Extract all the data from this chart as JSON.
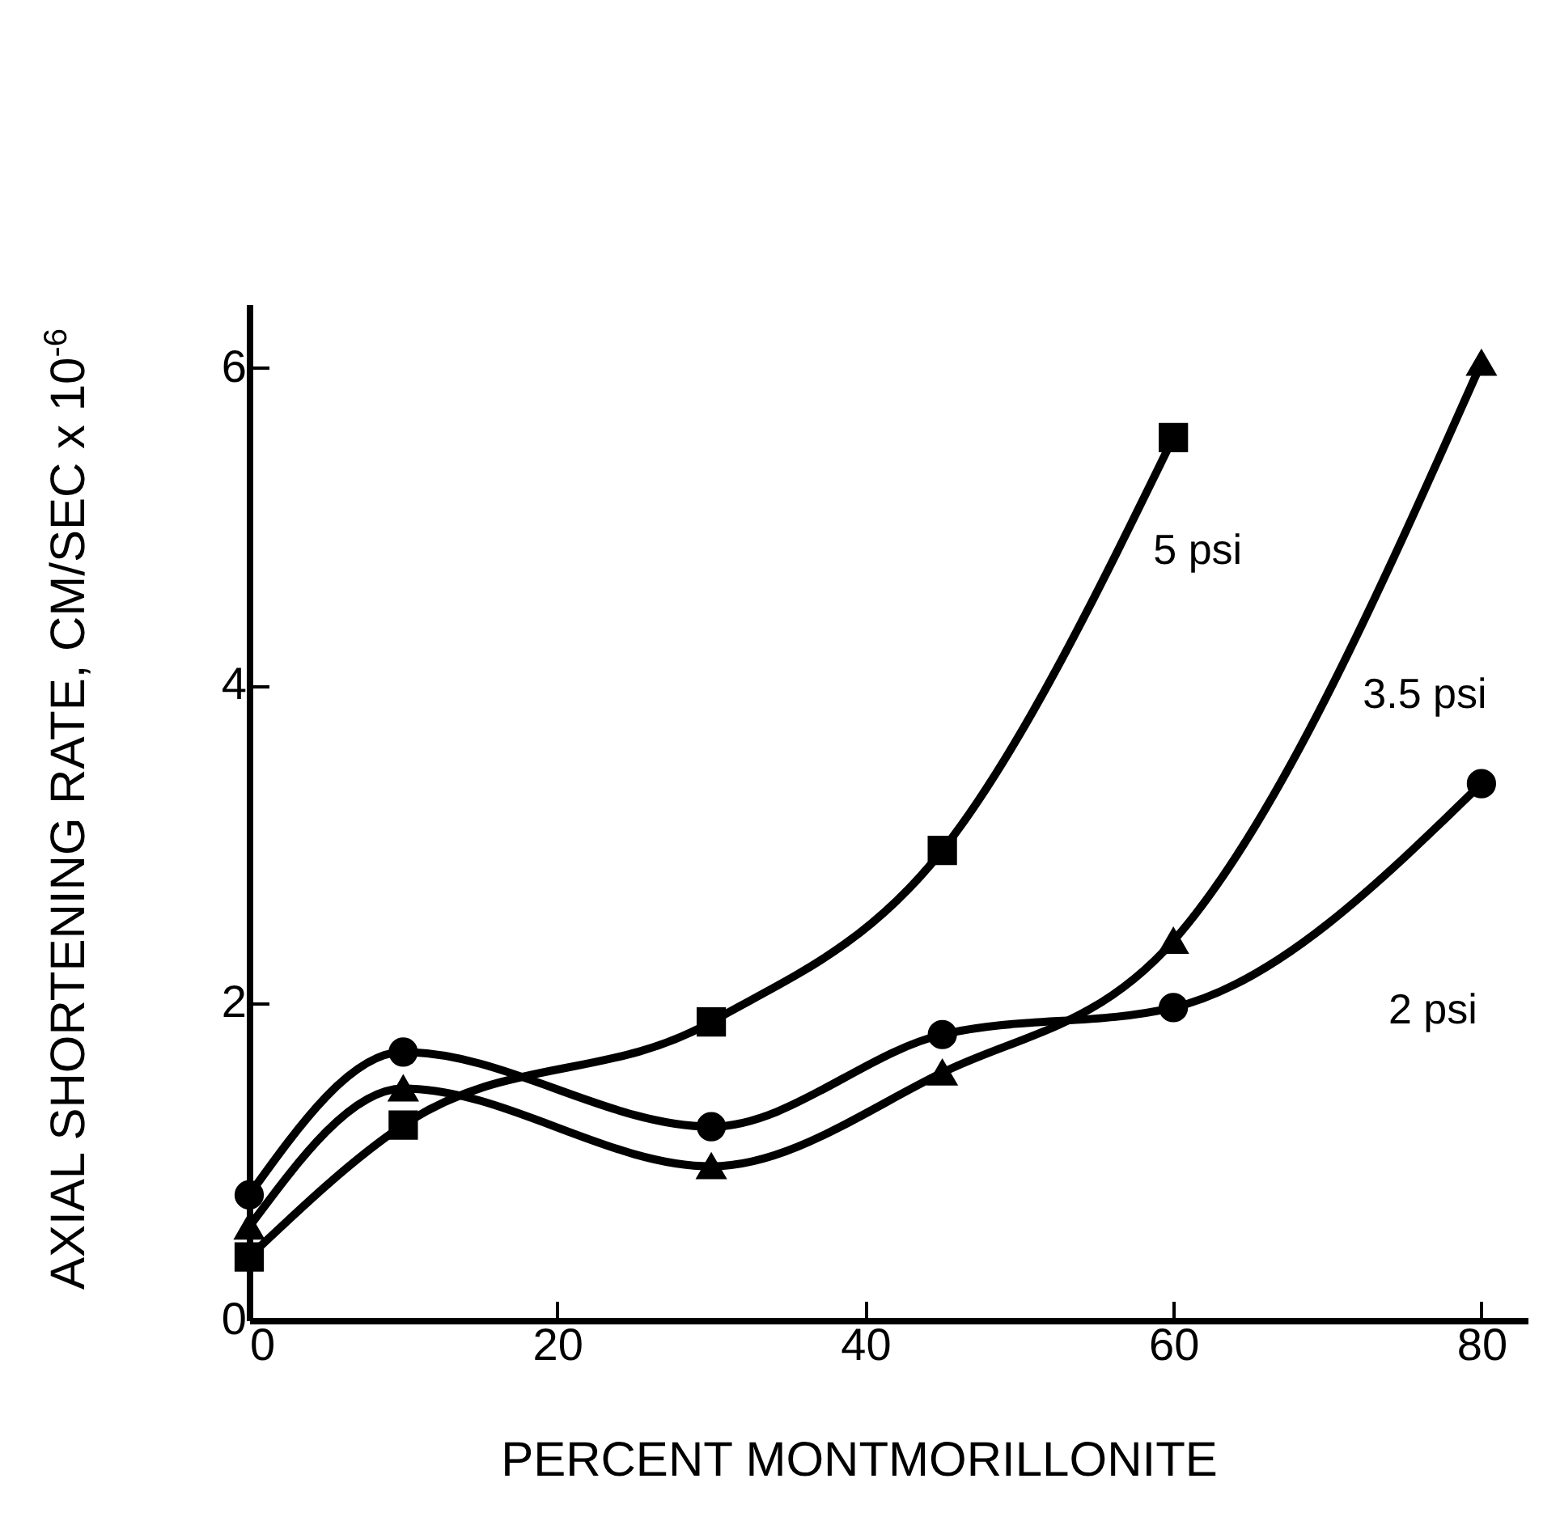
{
  "chart_data": {
    "type": "line",
    "xlabel": "PERCENT  MONTMORILLONITE",
    "ylabel": "AXIAL  SHORTENING  RATE,  CM/SEC x 10$^{-6}$",
    "x": [
      0,
      10,
      30,
      45,
      60,
      80
    ],
    "series": [
      {
        "name": "5 psi",
        "color": "#000000",
        "marker": "square",
        "x": [
          0,
          10,
          30,
          45,
          60
        ],
        "values": [
          0.4,
          1.23,
          1.88,
          2.96,
          5.56
        ]
      },
      {
        "name": "3.5 psi",
        "color": "#000000",
        "marker": "triangle",
        "values": [
          0.59,
          1.46,
          0.97,
          1.56,
          2.39,
          6.03
        ]
      },
      {
        "name": "2 psi",
        "color": "#000000",
        "marker": "circle",
        "values": [
          0.79,
          1.69,
          1.22,
          1.8,
          1.97,
          3.38
        ]
      }
    ],
    "xlim": [
      0,
      83
    ],
    "ylim": [
      0,
      6.4
    ],
    "xticks": [
      0,
      20,
      40,
      60,
      80
    ],
    "yticks": [
      0,
      2,
      4,
      6
    ],
    "grid": false,
    "line_style": "solid"
  }
}
